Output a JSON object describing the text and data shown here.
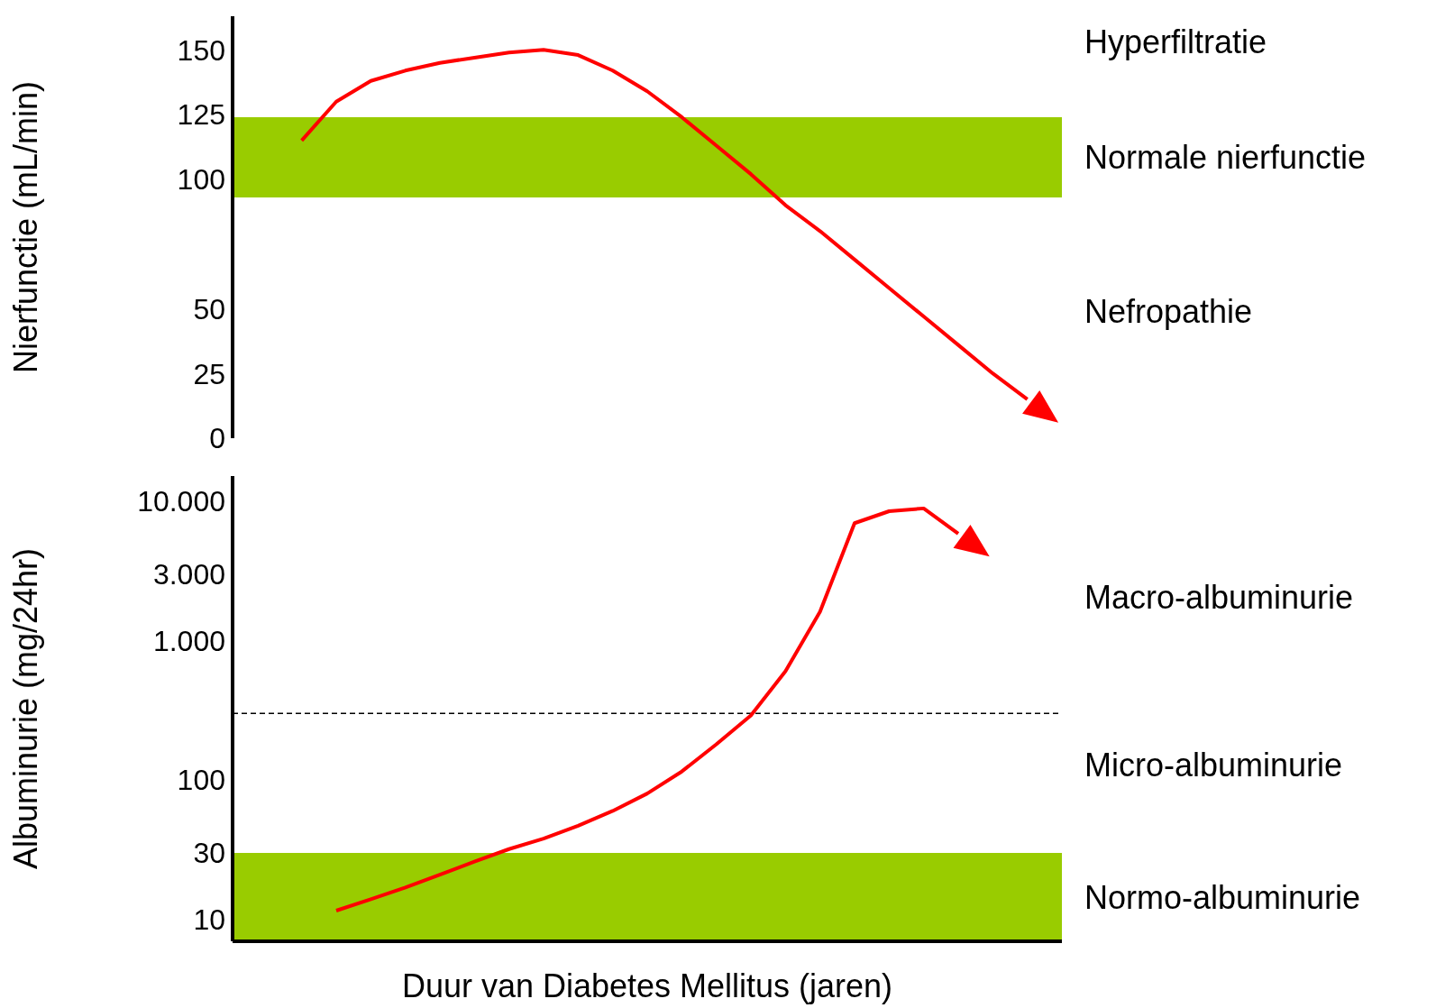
{
  "chart_data": [
    {
      "type": "line",
      "ylabel": "Nierfunctie (mL/min)",
      "categories": [
        null,
        null,
        null,
        null,
        null,
        null,
        null,
        null,
        null,
        null,
        null,
        null,
        null,
        null,
        null,
        null,
        null,
        null,
        null,
        null,
        null,
        null,
        null,
        null,
        null
      ],
      "series": [
        {
          "color": "#ff0000",
          "values": [
            null,
            null,
            115,
            130,
            138,
            142,
            145,
            147,
            149,
            150,
            148,
            142,
            134,
            124,
            113,
            102,
            90,
            80,
            69,
            58,
            47,
            36,
            25,
            15,
            null
          ]
        }
      ],
      "ylim": [
        0,
        163
      ],
      "yticks": [
        0,
        25,
        50,
        100,
        125,
        150
      ],
      "bands": [
        {
          "axis": "y",
          "from": 93,
          "to": 124,
          "label": "Normale nierfunctie",
          "color": "#99cc00"
        }
      ],
      "annotations": [
        "Hyperfiltratie",
        "Nefropathie"
      ],
      "marker": "none",
      "tick_labels": "y"
    },
    {
      "type": "line",
      "ylabel": "Albuminurie (mg/24hr)",
      "xlabel": "Duur van Diabetes Mellitus (jaren)",
      "categories": [
        null,
        null,
        null,
        null,
        null,
        null,
        null,
        null,
        null,
        null,
        null,
        null,
        null,
        null,
        null,
        null,
        null,
        null,
        null,
        null,
        null,
        null,
        null,
        null,
        null
      ],
      "series": [
        {
          "color": "#ff0000",
          "values": [
            null,
            null,
            null,
            11.6,
            14,
            17,
            21,
            26,
            32,
            38,
            47,
            60,
            80,
            115,
            180,
            290,
            600,
            1600,
            6900,
            8400,
            8800,
            5800,
            null,
            null,
            null
          ]
        }
      ],
      "log": true,
      "ylim": [
        7,
        15000
      ],
      "yticks": [
        10,
        30,
        100,
        {
          "value": 1000,
          "label": "1.000"
        },
        {
          "value": 3000,
          "label": "3.000"
        },
        {
          "value": 10000,
          "label": "10.000"
        }
      ],
      "bands": [
        {
          "axis": "y",
          "from": 7,
          "to": 30,
          "label": "Normo-albuminurie",
          "color": "#99cc00"
        }
      ],
      "ref_lines": [
        {
          "axis": "y",
          "value": 300,
          "line_style": "dashed",
          "color": "#000000"
        }
      ],
      "annotations": [
        "Macro-albuminurie",
        "Micro-albuminurie"
      ],
      "marker": "none",
      "tick_labels": "y"
    }
  ]
}
